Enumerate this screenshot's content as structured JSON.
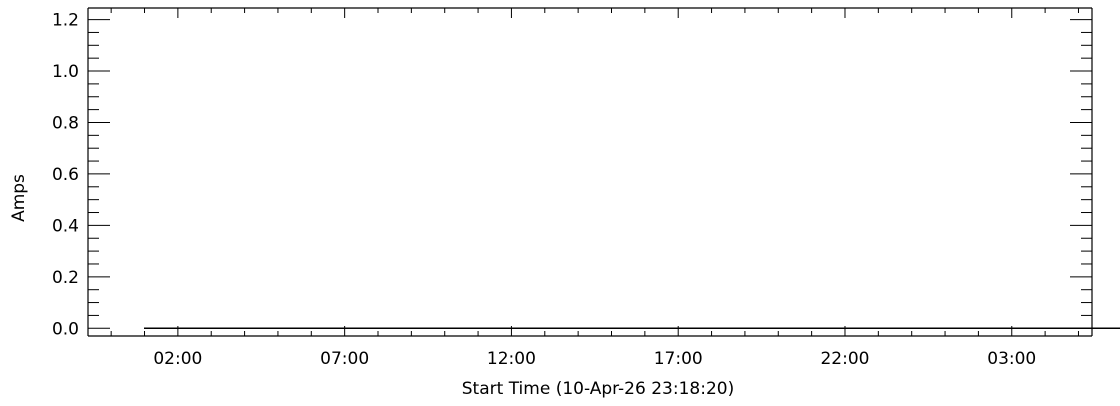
{
  "chart_data": {
    "type": "line",
    "xlabel": "Start Time (10-Apr-26 23:18:20)",
    "ylabel": "Amps",
    "x_tick_labels": [
      "02:00",
      "07:00",
      "12:00",
      "17:00",
      "22:00",
      "03:00"
    ],
    "x_tick_hours": [
      2.6944,
      7.6944,
      12.6944,
      17.6944,
      22.6944,
      27.6944
    ],
    "xlim_hours": [
      0,
      30.1
    ],
    "y_tick_labels": [
      "0.0",
      "0.2",
      "0.4",
      "0.6",
      "0.8",
      "1.0",
      "1.2"
    ],
    "ylim": [
      -0.03,
      1.245
    ],
    "y_major_step": 0.2,
    "y_minor_step": 0.05,
    "x_minor_per_major": 4,
    "grid": false,
    "series": [
      {
        "x_hours": [
          1.68,
          31.73
        ],
        "values": [
          0.0,
          0.0
        ]
      }
    ],
    "colors": {
      "axes": "#000000",
      "line": "#000000",
      "background": "#ffffff"
    }
  }
}
